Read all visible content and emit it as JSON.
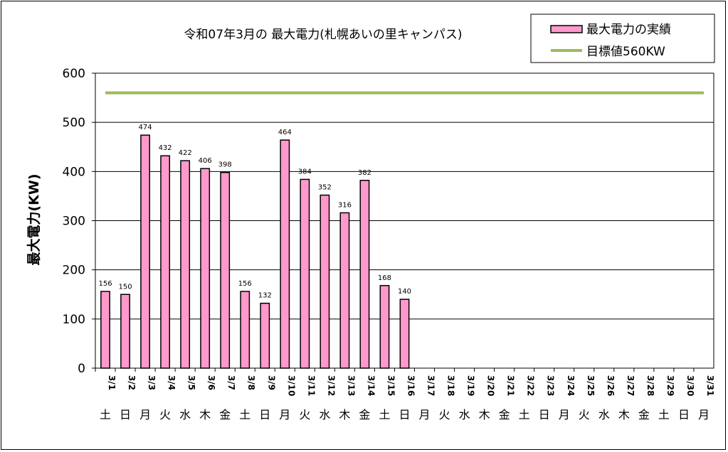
{
  "chart_data": {
    "type": "bar",
    "title": "令和07年3月の 最大電力(札幌あいの里キャンパス)",
    "ylabel": "最大電力(KW)",
    "xlabel": "",
    "ylim": [
      0,
      600
    ],
    "yticks": [
      0,
      100,
      200,
      300,
      400,
      500,
      600
    ],
    "grid": true,
    "legend_position": "top-right",
    "categories": [
      "3/1",
      "3/2",
      "3/3",
      "3/4",
      "3/5",
      "3/6",
      "3/7",
      "3/8",
      "3/9",
      "3/10",
      "3/11",
      "3/12",
      "3/13",
      "3/14",
      "3/15",
      "3/16",
      "3/17",
      "3/18",
      "3/19",
      "3/20",
      "3/21",
      "3/22",
      "3/23",
      "3/24",
      "3/25",
      "3/26",
      "3/27",
      "3/28",
      "3/29",
      "3/30",
      "3/31"
    ],
    "weekdays": [
      "土",
      "日",
      "月",
      "火",
      "水",
      "木",
      "金",
      "土",
      "日",
      "月",
      "火",
      "水",
      "木",
      "金",
      "土",
      "日",
      "月",
      "火",
      "水",
      "木",
      "金",
      "土",
      "日",
      "月",
      "火",
      "水",
      "木",
      "金",
      "土",
      "日",
      "月"
    ],
    "series": [
      {
        "name": "最大電力の実績",
        "type": "bar",
        "color": "#ff99cc",
        "values": [
          156,
          150,
          474,
          432,
          422,
          406,
          398,
          156,
          132,
          464,
          384,
          352,
          316,
          382,
          168,
          140,
          null,
          null,
          null,
          null,
          null,
          null,
          null,
          null,
          null,
          null,
          null,
          null,
          null,
          null,
          null
        ]
      },
      {
        "name": "目標値560KW",
        "type": "line",
        "color": "#9bbb59",
        "value": 560
      }
    ]
  }
}
